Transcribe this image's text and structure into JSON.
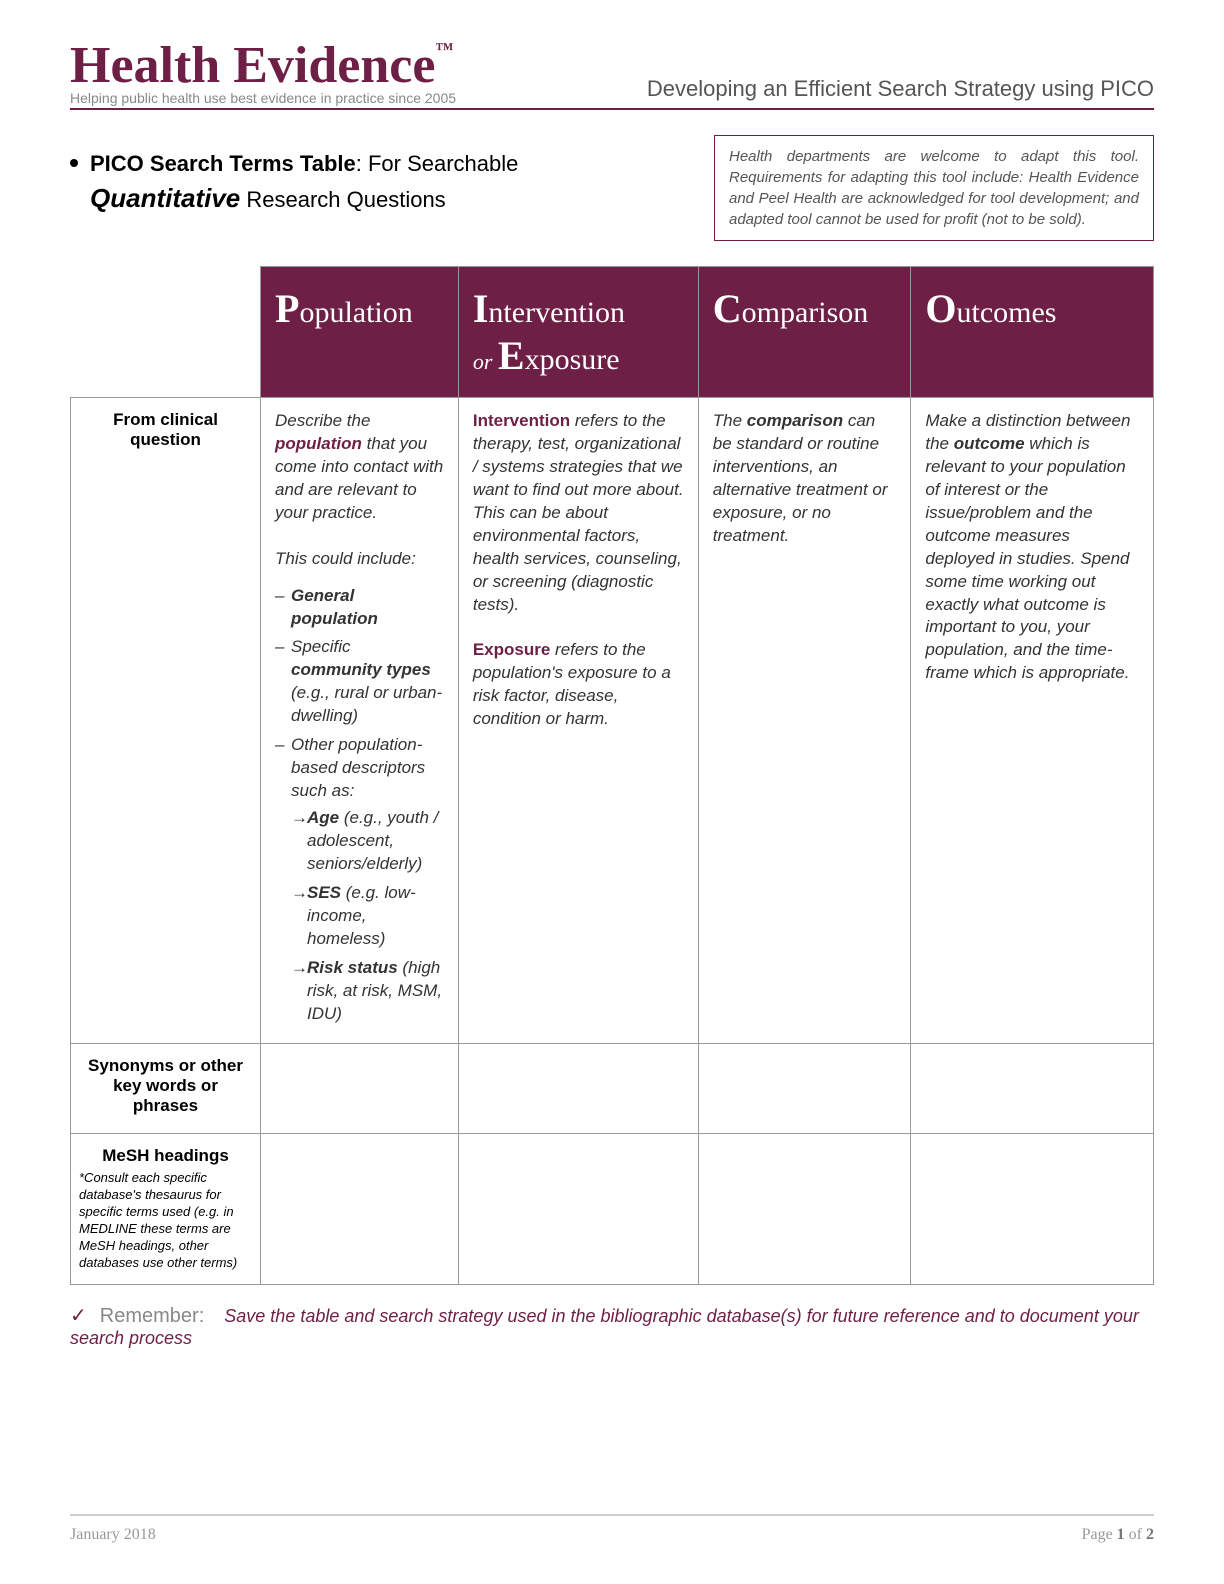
{
  "colors": {
    "brand": "#6e1f45",
    "text_muted": "#888",
    "border_grey": "#999",
    "footer_rule": "#ccc"
  },
  "header": {
    "logo": "Health Evidence",
    "tm": "™",
    "tagline": "Helping public health use best evidence in practice since 2005",
    "subtitle": "Developing an Efficient Search Strategy using PICO"
  },
  "title": {
    "line1_strong": "PICO Search Terms Table",
    "line1_rest": ": For Searchable",
    "line2_emph": "Quantitative",
    "line2_rest": " Research Questions"
  },
  "note_box": "Health departments are welcome to adapt this tool. Requirements for adapting this tool include: Health Evidence and Peel Health are acknowledged for tool development; and adapted tool cannot be used for profit (not to be sold).",
  "pico_headers": {
    "p_big": "P",
    "p_rest": "opulation",
    "i_big": "I",
    "i_rest": "ntervention",
    "i_or": "or ",
    "e_big": "E",
    "e_rest": "xposure",
    "c_big": "C",
    "c_rest": "omparison",
    "o_big": "O",
    "o_rest": "utcomes"
  },
  "rows": {
    "r1_label": "From clinical question",
    "r2_label": "Synonyms or other key words or phrases",
    "r3_label": "MeSH headings",
    "r3_note": "*Consult each specific database's thesaurus for specific terms used (e.g. in MEDLINE these terms are MeSH headings, other databases use other terms)"
  },
  "cells": {
    "population": {
      "intro1": "Describe the ",
      "kw": "population",
      "intro2": " that you come into contact with and are relevant to your practice.",
      "sub": "This could include:",
      "li1_b": "General population",
      "li2a": "Specific ",
      "li2b": "community types",
      "li2c": " (e.g., rural or urban-dwelling)",
      "li3": "Other population-based descriptors such as:",
      "li3a_b": "Age",
      "li3a_r": " (e.g., youth / adolescent, seniors/elderly)",
      "li3b_b": "SES",
      "li3b_r": " (e.g. low-income, homeless)",
      "li3c_b": "Risk status",
      "li3c_r": " (high risk, at risk, MSM, IDU)"
    },
    "intervention": {
      "kw1": "Intervention",
      "t1": " refers to the therapy, test, organizational / systems strategies that we want to find out more about. This can be about environmental factors, health services, counseling, or screening (diagnostic tests).",
      "kw2": "Exposure",
      "t2": " refers to the population's exposure to a risk factor, disease, condition or harm."
    },
    "comparison": {
      "t1": "The ",
      "kw": "comparison",
      "t2": " can be standard or routine interventions, an alternative treatment or exposure, or no treatment."
    },
    "outcomes": {
      "t1": "Make a distinction between the ",
      "kw": "outcome",
      "t2": " which is relevant to your population of interest or the issue/problem and the outcome measures deployed in studies. Spend some time working out exactly what outcome is important to you, your population, and the time-frame which is appropriate."
    }
  },
  "remember": {
    "label": "Remember:",
    "text": "Save the table and search strategy used in the bibliographic database(s) for future reference and to document your search process"
  },
  "footer": {
    "date": "January 2018",
    "page_pre": "Page ",
    "page_cur": "1",
    "page_mid": " of ",
    "page_tot": "2"
  }
}
